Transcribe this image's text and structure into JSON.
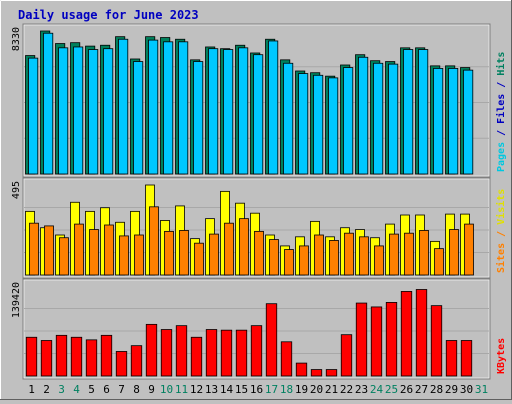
{
  "chart_data": {
    "type": "bar",
    "title": "Daily usage for June 2023",
    "days": [
      "1",
      "2",
      "3",
      "4",
      "5",
      "6",
      "7",
      "8",
      "9",
      "10",
      "11",
      "12",
      "13",
      "14",
      "15",
      "16",
      "17",
      "18",
      "19",
      "20",
      "21",
      "22",
      "23",
      "24",
      "25",
      "26",
      "27",
      "28",
      "29",
      "30",
      "31"
    ],
    "weekend_days": [
      "3",
      "4",
      "10",
      "11",
      "17",
      "18",
      "24",
      "25",
      "31"
    ],
    "panels": [
      {
        "name": "hits-files-pages",
        "ymax_label": "8330",
        "ymax": 8330,
        "right_label_parts": [
          {
            "text": "Pages",
            "color": "#00c8e0"
          },
          {
            "text": " / ",
            "color": "#0000c0"
          },
          {
            "text": "Files",
            "color": "#0000c0"
          },
          {
            "text": " / ",
            "color": "#0000c0"
          },
          {
            "text": "Hits",
            "color": "#008060"
          }
        ],
        "series": [
          {
            "name": "Hits",
            "color": "#00805c",
            "values": [
              6900,
              8330,
              7600,
              7650,
              7450,
              7500,
              8000,
              6700,
              8000,
              7950,
              7850,
              6650,
              7400,
              7300,
              7500,
              7050,
              7850,
              6650,
              6000,
              5900,
              5700,
              6350,
              6950,
              6600,
              6550,
              7350,
              7350,
              6300,
              6300,
              6200,
              0
            ]
          },
          {
            "name": "Files",
            "color": "#00c8ff",
            "values": [
              6750,
              8200,
              7350,
              7400,
              7250,
              7300,
              7850,
              6550,
              7800,
              7700,
              7700,
              6550,
              7300,
              7250,
              7350,
              6950,
              7750,
              6450,
              5850,
              5750,
              5600,
              6200,
              6800,
              6450,
              6400,
              7250,
              7250,
              6150,
              6150,
              6050,
              0
            ]
          },
          {
            "name": "Pages",
            "color": "#00c8ff",
            "values": [
              6750,
              8200,
              7350,
              7400,
              7250,
              7300,
              7850,
              6550,
              7800,
              7700,
              7700,
              6550,
              7300,
              7250,
              7350,
              6950,
              7750,
              6450,
              5850,
              5750,
              5600,
              6200,
              6800,
              6450,
              6400,
              7250,
              7250,
              6150,
              6150,
              6050,
              0
            ]
          }
        ]
      },
      {
        "name": "visits-sites",
        "ymax_label": "495",
        "ymax": 495,
        "right_label_parts": [
          {
            "text": "Sites",
            "color": "#ff8000"
          },
          {
            "text": " / ",
            "color": "#ff8000"
          },
          {
            "text": "Visits",
            "color": "#e0e000"
          }
        ],
        "series": [
          {
            "name": "Visits",
            "color": "#ffff00",
            "values": [
              350,
              260,
              220,
              400,
              350,
              370,
              290,
              350,
              495,
              300,
              380,
              200,
              310,
              460,
              395,
              340,
              220,
              160,
              210,
              295,
              210,
              260,
              250,
              205,
              280,
              330,
              330,
              185,
              335,
              335,
              0
            ]
          },
          {
            "name": "Sites",
            "color": "#ff8000",
            "values": [
              285,
              270,
              205,
              280,
              250,
              275,
              215,
              220,
              375,
              240,
              245,
              175,
              225,
              285,
              310,
              240,
              195,
              140,
              160,
              220,
              190,
              230,
              210,
              160,
              225,
              230,
              245,
              145,
              250,
              280,
              0
            ]
          }
        ]
      },
      {
        "name": "kbytes",
        "ymax_label": "139420",
        "ymax": 139420,
        "right_label_parts": [
          {
            "text": "KBytes",
            "color": "#ff0000"
          }
        ],
        "series": [
          {
            "name": "KBytes",
            "color": "#ff0000",
            "values": [
              60000,
              55000,
              63000,
              60000,
              56000,
              63000,
              38000,
              47000,
              80000,
              72000,
              78000,
              60000,
              72000,
              71000,
              71000,
              78000,
              112000,
              53000,
              20000,
              10000,
              10000,
              64000,
              113000,
              107000,
              114000,
              131000,
              134000,
              109000,
              55000,
              55000,
              0
            ]
          }
        ]
      }
    ]
  }
}
